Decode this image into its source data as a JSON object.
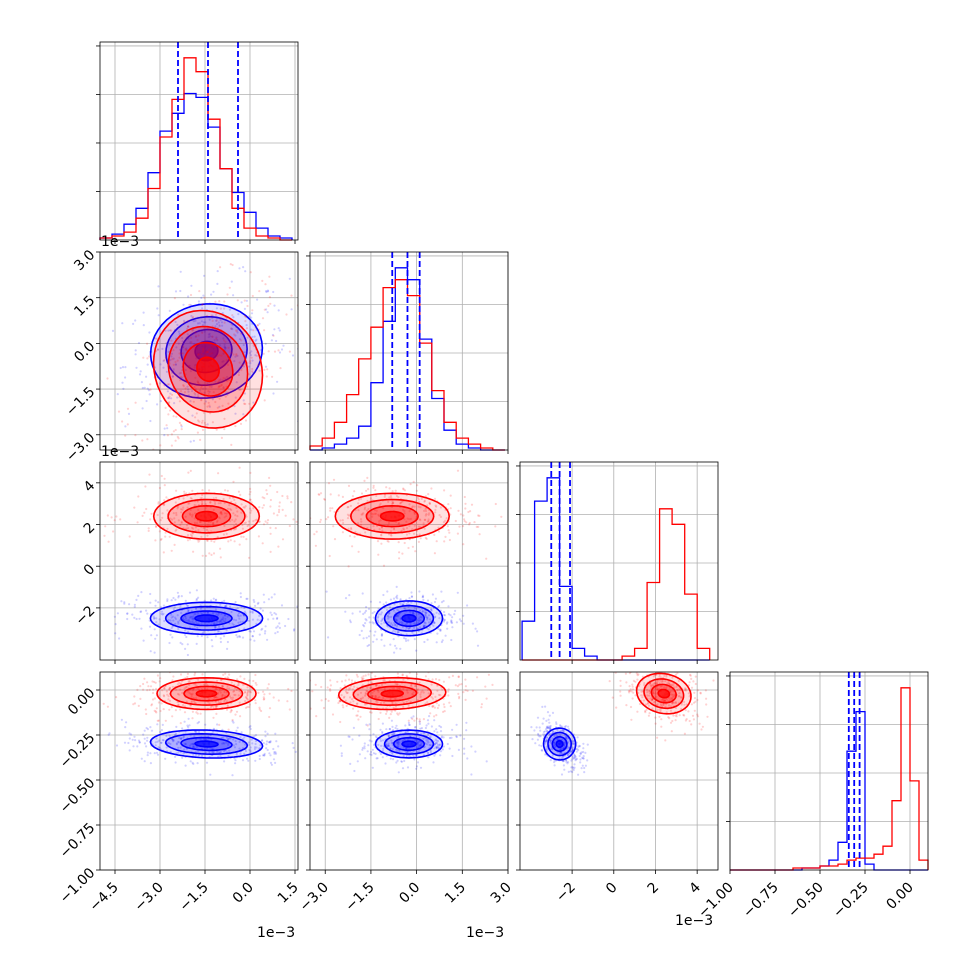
{
  "chart_data": {
    "type": "corner",
    "colors": {
      "series_a": "#0000ff",
      "series_b": "#ff0000",
      "grid": "#b0b0b0",
      "median_lines": "#0000ff"
    },
    "series": [
      {
        "color": "blue",
        "means": [
          -1.45,
          -0.25,
          -2.5,
          -0.3
        ]
      },
      {
        "color": "red",
        "means": [
          -1.45,
          -0.85,
          2.4,
          -0.02
        ]
      }
    ],
    "parameters": [
      {
        "range": [
          -5.0,
          1.6
        ],
        "ticks": [
          -4.5,
          -3.0,
          -1.5,
          0.0,
          1.5
        ],
        "tick_labels": [
          "−4.5",
          "−3.0",
          "−1.5",
          "0.0",
          "1.5"
        ],
        "offset_label": "1e−3",
        "quantile_lines": [
          -2.4,
          -1.4,
          -0.4
        ],
        "hist_bins": [
          -5.0,
          -4.6,
          -4.2,
          -3.8,
          -3.4,
          -3.0,
          -2.6,
          -2.2,
          -1.8,
          -1.4,
          -1.0,
          -0.6,
          -0.2,
          0.2,
          0.6,
          1.0,
          1.4
        ],
        "hist_blue": [
          0.01,
          0.03,
          0.08,
          0.16,
          0.34,
          0.55,
          0.64,
          0.74,
          0.72,
          0.57,
          0.36,
          0.24,
          0.14,
          0.06,
          0.02,
          0.01
        ],
        "hist_red": [
          0.01,
          0.02,
          0.04,
          0.11,
          0.26,
          0.52,
          0.71,
          0.92,
          0.85,
          0.61,
          0.36,
          0.16,
          0.06,
          0.02,
          0.01,
          0.0
        ]
      },
      {
        "range": [
          -3.5,
          3.0
        ],
        "ticks": [
          -3.0,
          -1.5,
          0.0,
          1.5,
          3.0
        ],
        "tick_labels": [
          "−3.0",
          "−1.5",
          "0.0",
          "1.5",
          "3.0"
        ],
        "offset_label": "1e−3",
        "quantile_lines": [
          -0.8,
          -0.3,
          0.1
        ],
        "hist_bins": [
          -3.5,
          -3.1,
          -2.7,
          -2.3,
          -1.9,
          -1.5,
          -1.1,
          -0.7,
          -0.3,
          0.1,
          0.5,
          0.9,
          1.3,
          1.7,
          2.1,
          2.5,
          2.9
        ],
        "hist_blue": [
          0.0,
          0.01,
          0.03,
          0.06,
          0.12,
          0.34,
          0.65,
          0.92,
          0.86,
          0.56,
          0.26,
          0.1,
          0.03,
          0.01,
          0.0,
          0.0
        ],
        "hist_red": [
          0.02,
          0.06,
          0.14,
          0.28,
          0.46,
          0.62,
          0.82,
          0.86,
          0.78,
          0.54,
          0.3,
          0.14,
          0.06,
          0.03,
          0.01,
          0.0
        ]
      },
      {
        "range": [
          -4.5,
          5.0
        ],
        "ticks": [
          -2,
          0,
          2,
          4
        ],
        "tick_labels": [
          "−2",
          "0",
          "2",
          "4"
        ],
        "offset_label": "1e−3",
        "quantile_lines": [
          -3.0,
          -2.6,
          -2.1
        ],
        "hist_bins": [
          -4.4,
          -3.8,
          -3.2,
          -2.6,
          -2.0,
          -1.4,
          -0.8,
          -0.2,
          0.4,
          1.0,
          1.6,
          2.2,
          2.8,
          3.4,
          4.0,
          4.6
        ],
        "hist_blue": [
          0.2,
          0.82,
          0.94,
          0.38,
          0.06,
          0.02,
          0.0,
          0.0,
          0.0,
          0.0,
          0.0,
          0.0,
          0.0,
          0.0,
          0.0
        ],
        "hist_red": [
          0.0,
          0.0,
          0.0,
          0.0,
          0.0,
          0.0,
          0.0,
          0.0,
          0.02,
          0.06,
          0.4,
          0.78,
          0.7,
          0.34,
          0.06
        ]
      },
      {
        "range": [
          -1.0,
          0.1
        ],
        "ticks": [
          -1.0,
          -0.75,
          -0.5,
          -0.25,
          0.0
        ],
        "tick_labels": [
          "−1.00",
          "−0.75",
          "−0.50",
          "−0.25",
          "0.00"
        ],
        "offset_label": "",
        "quantile_lines": [
          -0.34,
          -0.31,
          -0.28
        ],
        "hist_bins": [
          -1.0,
          -0.95,
          -0.9,
          -0.85,
          -0.8,
          -0.75,
          -0.7,
          -0.65,
          -0.6,
          -0.55,
          -0.5,
          -0.45,
          -0.4,
          -0.35,
          -0.3,
          -0.25,
          -0.2,
          -0.15,
          -0.1,
          -0.05,
          0.0,
          0.05,
          0.1
        ],
        "hist_blue": [
          0.0,
          0.0,
          0.0,
          0.0,
          0.0,
          0.0,
          0.0,
          0.0,
          0.01,
          0.01,
          0.02,
          0.05,
          0.14,
          0.6,
          0.8,
          0.03,
          0.0,
          0.0,
          0.0,
          0.0,
          0.0,
          0.0
        ],
        "hist_red": [
          0.0,
          0.0,
          0.0,
          0.0,
          0.0,
          0.0,
          0.0,
          0.01,
          0.01,
          0.01,
          0.02,
          0.02,
          0.03,
          0.05,
          0.06,
          0.06,
          0.08,
          0.12,
          0.35,
          0.92,
          0.45,
          0.05
        ]
      }
    ],
    "pairs": [
      {
        "row": 1,
        "col": 0,
        "blue": {
          "mean": [
            -1.45,
            -0.25
          ],
          "sd": [
            0.85,
            0.7
          ],
          "rho": 0.2
        },
        "red": {
          "mean": [
            -1.4,
            -0.85
          ],
          "sd": [
            0.8,
            0.9
          ],
          "rho": 0.45
        }
      },
      {
        "row": 2,
        "col": 0,
        "blue": {
          "mean": [
            -1.45,
            -2.5
          ],
          "sd": [
            0.85,
            0.35
          ],
          "rho": 0.0
        },
        "red": {
          "mean": [
            -1.45,
            2.4
          ],
          "sd": [
            0.8,
            0.5
          ],
          "rho": 0.0
        }
      },
      {
        "row": 2,
        "col": 1,
        "blue": {
          "mean": [
            -0.25,
            -2.5
          ],
          "sd": [
            0.5,
            0.38
          ],
          "rho": 0.0
        },
        "red": {
          "mean": [
            -0.8,
            2.4
          ],
          "sd": [
            0.85,
            0.5
          ],
          "rho": 0.0
        }
      },
      {
        "row": 3,
        "col": 0,
        "blue": {
          "mean": [
            -1.45,
            -0.3
          ],
          "sd": [
            0.85,
            0.035
          ],
          "rho": -0.15
        },
        "red": {
          "mean": [
            -1.45,
            -0.02
          ],
          "sd": [
            0.75,
            0.04
          ],
          "rho": 0.0
        }
      },
      {
        "row": 3,
        "col": 1,
        "blue": {
          "mean": [
            -0.25,
            -0.3
          ],
          "sd": [
            0.5,
            0.035
          ],
          "rho": 0.0
        },
        "red": {
          "mean": [
            -0.8,
            -0.02
          ],
          "sd": [
            0.8,
            0.04
          ],
          "rho": 0.1
        }
      },
      {
        "row": 3,
        "col": 2,
        "blue": {
          "mean": [
            -2.6,
            -0.3
          ],
          "sd": [
            0.35,
            0.04
          ],
          "rho": -0.5
        },
        "red": {
          "mean": [
            2.4,
            -0.02
          ],
          "sd": [
            0.6,
            0.05
          ],
          "rho": -0.3
        }
      }
    ],
    "grid": true,
    "legend": "none"
  }
}
